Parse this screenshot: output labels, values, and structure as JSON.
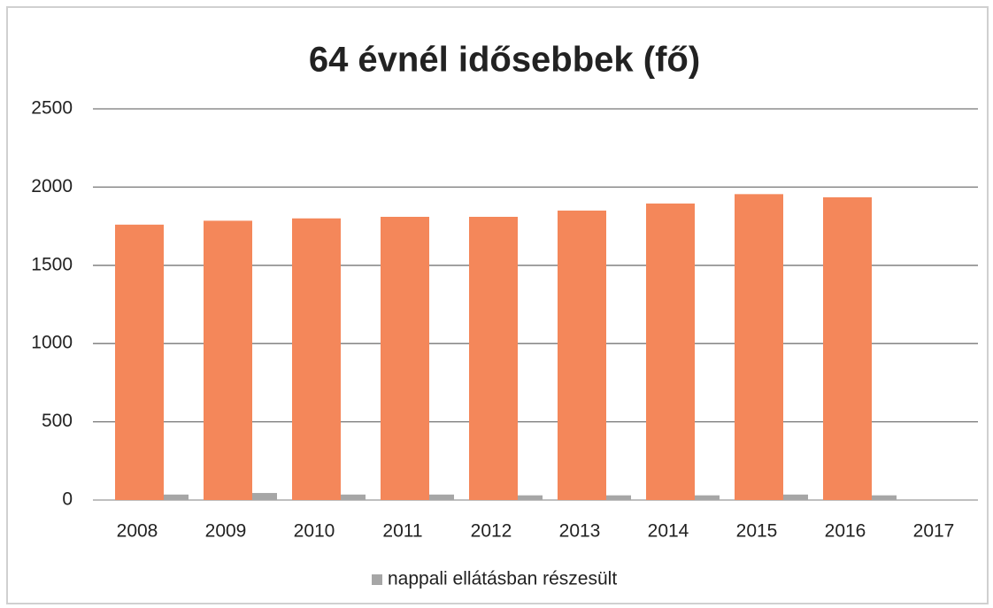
{
  "chart_data": {
    "type": "bar",
    "title": "64 évnél idősebbek (fő)",
    "categories": [
      "2008",
      "2009",
      "2010",
      "2011",
      "2012",
      "2013",
      "2014",
      "2015",
      "2016",
      "2017"
    ],
    "series": [
      {
        "color": "#f4875a",
        "values": [
          1760,
          1785,
          1800,
          1810,
          1810,
          1850,
          1895,
          1955,
          1935,
          null
        ]
      },
      {
        "name": "nappali ellátásban részesült",
        "color": "#a6a6a6",
        "values": [
          35,
          45,
          35,
          35,
          30,
          30,
          30,
          35,
          30,
          null
        ]
      }
    ],
    "ylim": [
      0,
      2500
    ],
    "yticks": [
      0,
      500,
      1000,
      1500,
      2000,
      2500
    ],
    "grid": true,
    "legend": "bottom"
  }
}
